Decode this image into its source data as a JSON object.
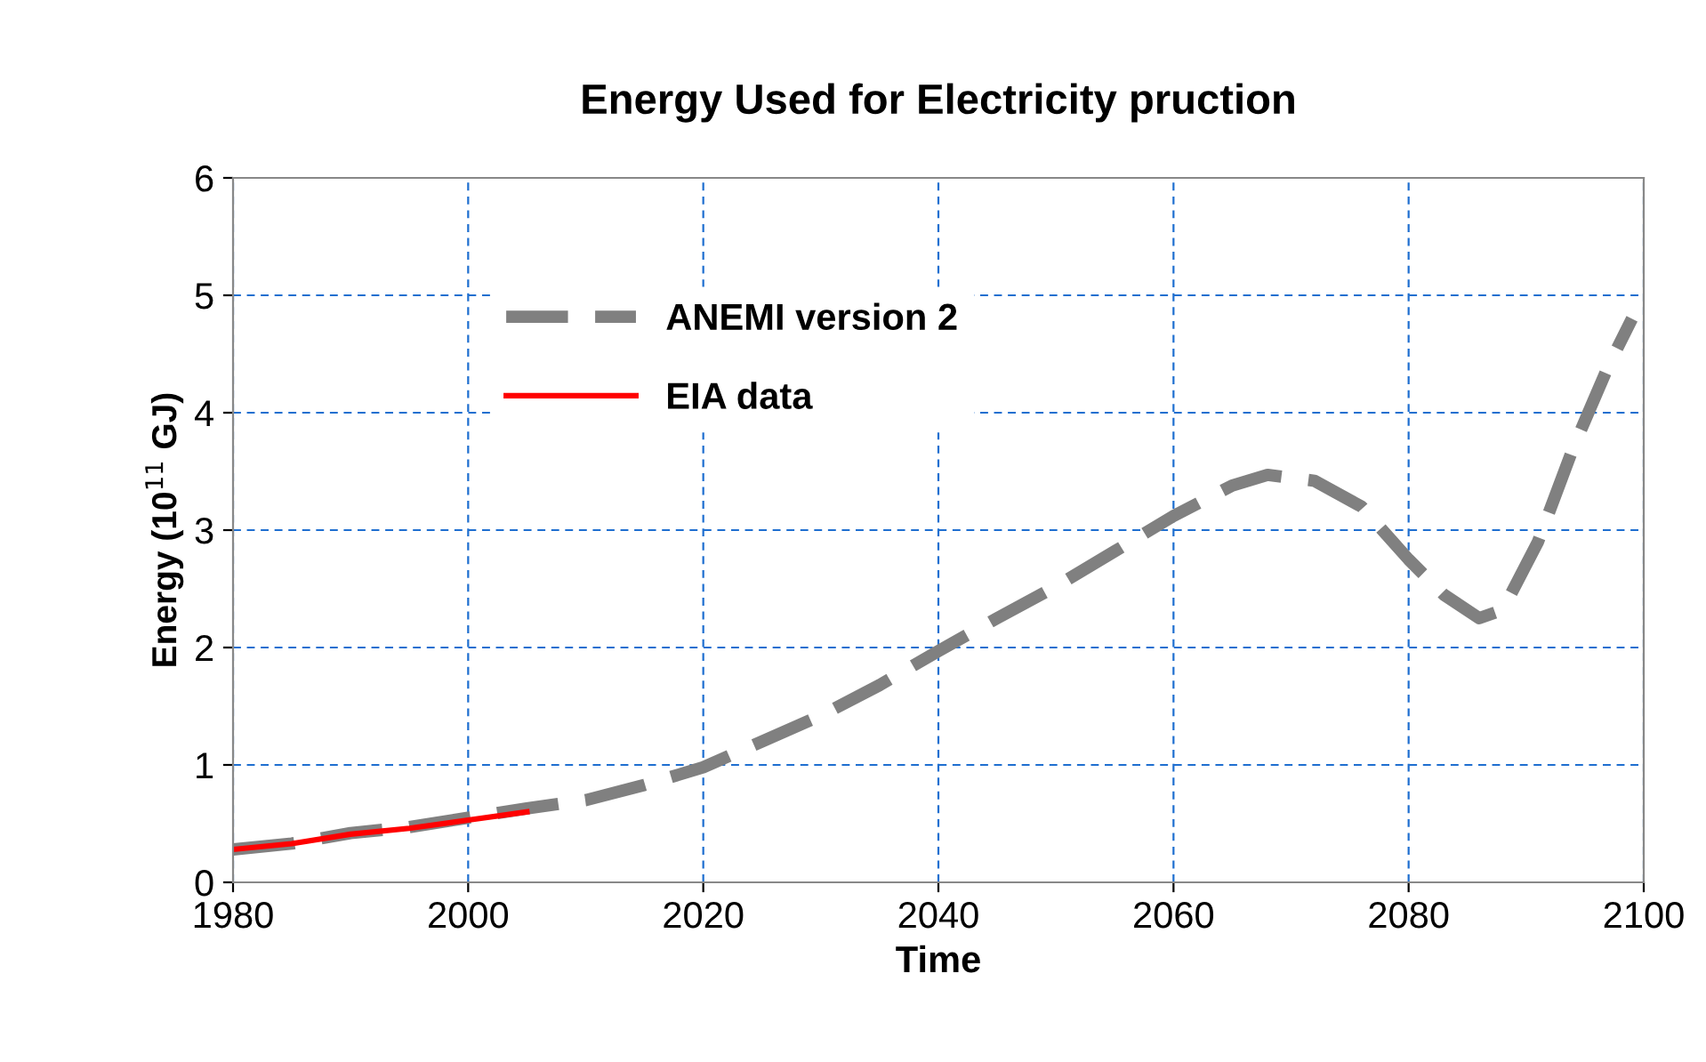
{
  "chart_data": {
    "type": "line",
    "title": "Energy Used for Electricity pruction",
    "xlabel": "Time",
    "ylabel": "Energy (10$^{11}$ GJ)",
    "xlim": [
      1980,
      2100
    ],
    "xticks": [
      1980,
      2000,
      2020,
      2040,
      2060,
      2080,
      2100
    ],
    "ylim": [
      0,
      6
    ],
    "yticks": [
      0,
      1,
      2,
      3,
      4,
      5,
      6
    ],
    "grid": true,
    "legend": "top left",
    "marker": "none",
    "series": [
      {
        "name": "ANEMI version 2",
        "color": "#808080",
        "line_style": "dashed",
        "x": [
          1980,
          1985,
          1990,
          1995,
          2000,
          2005,
          2010,
          2015,
          2020,
          2025,
          2030,
          2035,
          2040,
          2045,
          2050,
          2055,
          2060,
          2065,
          2068,
          2072,
          2076,
          2080,
          2083,
          2086,
          2088,
          2091,
          2094,
          2097,
          2099
        ],
        "values": [
          0.28,
          0.33,
          0.42,
          0.47,
          0.55,
          0.63,
          0.7,
          0.83,
          0.98,
          1.2,
          1.42,
          1.68,
          1.97,
          2.25,
          2.52,
          2.82,
          3.12,
          3.38,
          3.47,
          3.42,
          3.2,
          2.75,
          2.45,
          2.25,
          2.32,
          2.9,
          3.7,
          4.4,
          4.8
        ]
      },
      {
        "name": "EIA data",
        "color": "#ff0000",
        "line_style": "solid",
        "x": [
          1980,
          1985,
          1990,
          1995,
          2000,
          2005
        ],
        "values": [
          0.28,
          0.33,
          0.41,
          0.46,
          0.53,
          0.6
        ]
      }
    ]
  }
}
